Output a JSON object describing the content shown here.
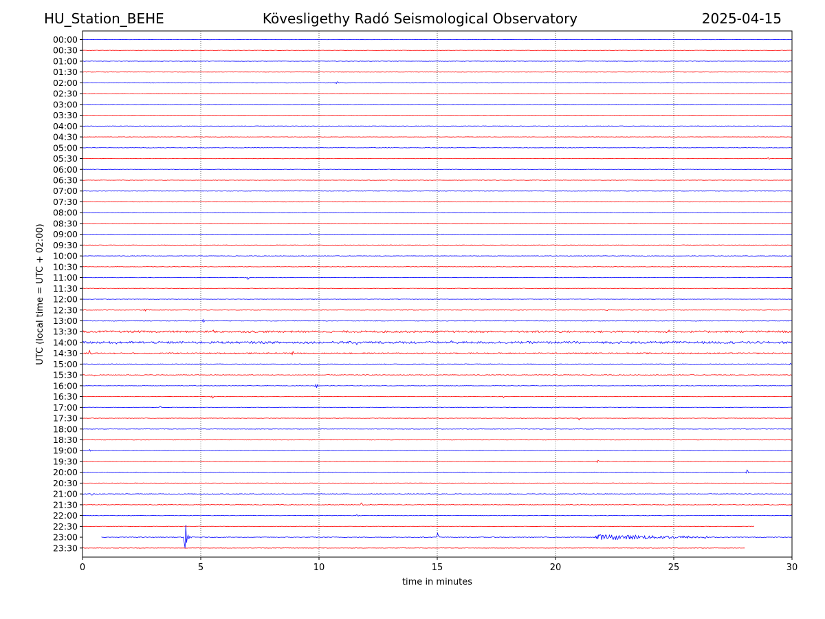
{
  "header": {
    "station": "HU_Station_BEHE",
    "observatory": "Kövesligethy Radó Seismological Observatory",
    "date": "2025-04-15"
  },
  "chart_data": {
    "type": "line",
    "title": "Kövesligethy Radó Seismological Observatory",
    "xlabel": "time in minutes",
    "ylabel": "UTC (local time = UTC + 02:00)",
    "xlim": [
      0,
      30
    ],
    "xticks": [
      0,
      5,
      10,
      15,
      20,
      25,
      30
    ],
    "grid": "vertical dotted lines at x ticks",
    "colors": {
      "even_rows": "#0000ff",
      "odd_rows": "#ff0000"
    },
    "rows": [
      "00:00",
      "00:30",
      "01:00",
      "01:30",
      "02:00",
      "02:30",
      "03:00",
      "03:30",
      "04:00",
      "04:30",
      "05:00",
      "05:30",
      "06:00",
      "06:30",
      "07:00",
      "07:30",
      "08:00",
      "08:30",
      "09:00",
      "09:30",
      "10:00",
      "10:30",
      "11:00",
      "11:30",
      "12:00",
      "12:30",
      "13:00",
      "13:30",
      "14:00",
      "14:30",
      "15:00",
      "15:30",
      "16:00",
      "16:30",
      "17:00",
      "17:30",
      "18:00",
      "18:30",
      "19:00",
      "19:30",
      "20:00",
      "20:30",
      "21:00",
      "21:30",
      "22:00",
      "22:30",
      "23:00",
      "23:30"
    ],
    "noise_levels": [
      0.25,
      0.25,
      0.3,
      0.25,
      0.35,
      0.25,
      0.3,
      0.25,
      0.3,
      0.25,
      0.3,
      0.3,
      0.3,
      0.3,
      0.3,
      0.3,
      0.3,
      0.3,
      0.3,
      0.3,
      0.3,
      0.3,
      0.3,
      0.3,
      0.3,
      0.3,
      0.5,
      1.3,
      1.5,
      0.9,
      0.4,
      0.5,
      0.3,
      0.3,
      0.35,
      0.3,
      0.3,
      0.3,
      0.3,
      0.3,
      0.4,
      0.3,
      0.4,
      0.4,
      0.35,
      0.3,
      0.45,
      0.3
    ],
    "trace_extents": [
      {
        "row": "22:30",
        "end": 28.4
      },
      {
        "row": "23:00",
        "start": 0.8
      },
      {
        "row": "23:30",
        "end": 28.0
      }
    ],
    "events": [
      {
        "row": "02:00",
        "t": 10.8,
        "amp": 4
      },
      {
        "row": "05:30",
        "t": 29.0,
        "amp": 3
      },
      {
        "row": "09:00",
        "t": 9.6,
        "amp": 3
      },
      {
        "row": "11:00",
        "t": 7.0,
        "amp": 3
      },
      {
        "row": "12:30",
        "t": 2.7,
        "amp": 4
      },
      {
        "row": "12:30",
        "t": 22.2,
        "amp": 3
      },
      {
        "row": "13:00",
        "t": 5.1,
        "amp": 3
      },
      {
        "row": "13:30",
        "t": 5.5,
        "amp": 4
      },
      {
        "row": "13:30",
        "t": 19.2,
        "amp": 5
      },
      {
        "row": "13:30",
        "t": 24.8,
        "amp": 3
      },
      {
        "row": "14:00",
        "t": 1.5,
        "amp": 4
      },
      {
        "row": "14:00",
        "t": 11.6,
        "amp": 5
      },
      {
        "row": "14:00",
        "t": 15.6,
        "amp": 6
      },
      {
        "row": "14:00",
        "t": 28.2,
        "amp": 3
      },
      {
        "row": "14:30",
        "t": 0.3,
        "amp": 5
      },
      {
        "row": "14:30",
        "t": 8.9,
        "amp": 4
      },
      {
        "row": "15:00",
        "t": 29.9,
        "amp": 3
      },
      {
        "row": "15:30",
        "t": 0.5,
        "amp": 3
      },
      {
        "row": "16:00",
        "t": 9.9,
        "amp": 5
      },
      {
        "row": "16:30",
        "t": 5.5,
        "amp": 3
      },
      {
        "row": "16:30",
        "t": 17.8,
        "amp": 3
      },
      {
        "row": "17:00",
        "t": 3.3,
        "amp": 3
      },
      {
        "row": "17:00",
        "t": 19.8,
        "amp": 3
      },
      {
        "row": "17:30",
        "t": 21.0,
        "amp": 3
      },
      {
        "row": "19:00",
        "t": 0.3,
        "amp": 2
      },
      {
        "row": "19:30",
        "t": 21.8,
        "amp": 3
      },
      {
        "row": "20:00",
        "t": 28.1,
        "amp": 4
      },
      {
        "row": "21:00",
        "t": 0.4,
        "amp": 3
      },
      {
        "row": "21:30",
        "t": 11.8,
        "amp": 3
      },
      {
        "row": "22:00",
        "t": 11.6,
        "amp": 2
      },
      {
        "row": "23:00",
        "t": 4.3,
        "amp": 46,
        "type": "large"
      },
      {
        "row": "23:00",
        "t": 15.0,
        "amp": 10
      },
      {
        "row": "23:00",
        "t": 21.6,
        "amp": 10,
        "coda_end": 26.5
      }
    ]
  }
}
